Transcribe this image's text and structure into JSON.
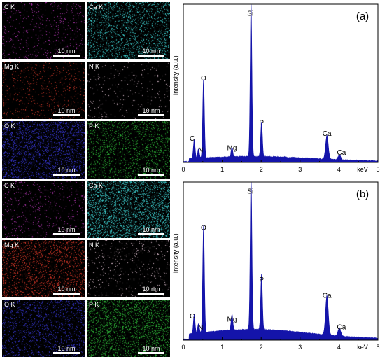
{
  "maps": [
    {
      "panel": "a",
      "tiles": [
        {
          "label": "C K",
          "scale": "10 nm",
          "color": "#c23bc2",
          "density": 0.1
        },
        {
          "label": "Ca K",
          "scale": "10 nm",
          "color": "#3fd6d6",
          "density": 0.35
        },
        {
          "label": "Mg K",
          "scale": "10 nm",
          "color": "#d23a2a",
          "density": 0.12
        },
        {
          "label": "N K",
          "scale": "10 nm",
          "color": "#e8c8d8",
          "density": 0.05
        },
        {
          "label": "O K",
          "scale": "10 nm",
          "color": "#3a3ae0",
          "density": 0.45
        },
        {
          "label": "P K",
          "scale": "10 nm",
          "color": "#2fbf3a",
          "density": 0.3
        }
      ]
    },
    {
      "panel": "b",
      "tiles": [
        {
          "label": "C K",
          "scale": "10 nm",
          "color": "#c23bc2",
          "density": 0.1
        },
        {
          "label": "Ca K",
          "scale": "10 nm",
          "color": "#3fd6d6",
          "density": 0.55
        },
        {
          "label": "Mg K",
          "scale": "10 nm",
          "color": "#e33a2a",
          "density": 0.35
        },
        {
          "label": "N K",
          "scale": "10 nm",
          "color": "#e8c8d8",
          "density": 0.08
        },
        {
          "label": "O K",
          "scale": "10 nm",
          "color": "#3a3ae0",
          "density": 0.3
        },
        {
          "label": "P K",
          "scale": "10 nm",
          "color": "#2fbf3a",
          "density": 0.45
        }
      ]
    }
  ],
  "chart_data": [
    {
      "type": "area",
      "panel_label": "(a)",
      "title": "",
      "xlabel": "keV",
      "ylabel": "Intensity (a.u.)",
      "xlim": [
        0,
        5
      ],
      "ylim": [
        0,
        1.0
      ],
      "xticks": [
        "0",
        "1",
        "2",
        "3",
        "4",
        "5"
      ],
      "color": "#1414aa",
      "baseline": 0.03,
      "peaks": [
        {
          "element": "C",
          "x": 0.28,
          "y": 0.12
        },
        {
          "element": "N",
          "x": 0.39,
          "y": 0.06
        },
        {
          "element": "O",
          "x": 0.52,
          "y": 0.5
        },
        {
          "element": "Mg",
          "x": 1.25,
          "y": 0.06
        },
        {
          "element": "Si",
          "x": 1.74,
          "y": 0.98
        },
        {
          "element": "P",
          "x": 2.01,
          "y": 0.22
        },
        {
          "element": "Ca",
          "x": 3.69,
          "y": 0.15
        },
        {
          "element": "Ca",
          "x": 4.01,
          "y": 0.03
        }
      ]
    },
    {
      "type": "area",
      "panel_label": "(b)",
      "title": "",
      "xlabel": "keV",
      "ylabel": "Intensity (a.u.)",
      "xlim": [
        0,
        5
      ],
      "ylim": [
        0,
        1.0
      ],
      "xticks": [
        "0",
        "1",
        "2",
        "3",
        "4",
        "5"
      ],
      "color": "#1414aa",
      "baseline": 0.06,
      "peaks": [
        {
          "element": "C",
          "x": 0.28,
          "y": 0.12
        },
        {
          "element": "N",
          "x": 0.39,
          "y": 0.06
        },
        {
          "element": "O",
          "x": 0.52,
          "y": 0.68
        },
        {
          "element": "Mg",
          "x": 1.25,
          "y": 0.1
        },
        {
          "element": "Si",
          "x": 1.74,
          "y": 0.98
        },
        {
          "element": "P",
          "x": 2.01,
          "y": 0.35
        },
        {
          "element": "Ca",
          "x": 3.69,
          "y": 0.25
        },
        {
          "element": "Ca",
          "x": 4.01,
          "y": 0.05
        }
      ]
    }
  ]
}
